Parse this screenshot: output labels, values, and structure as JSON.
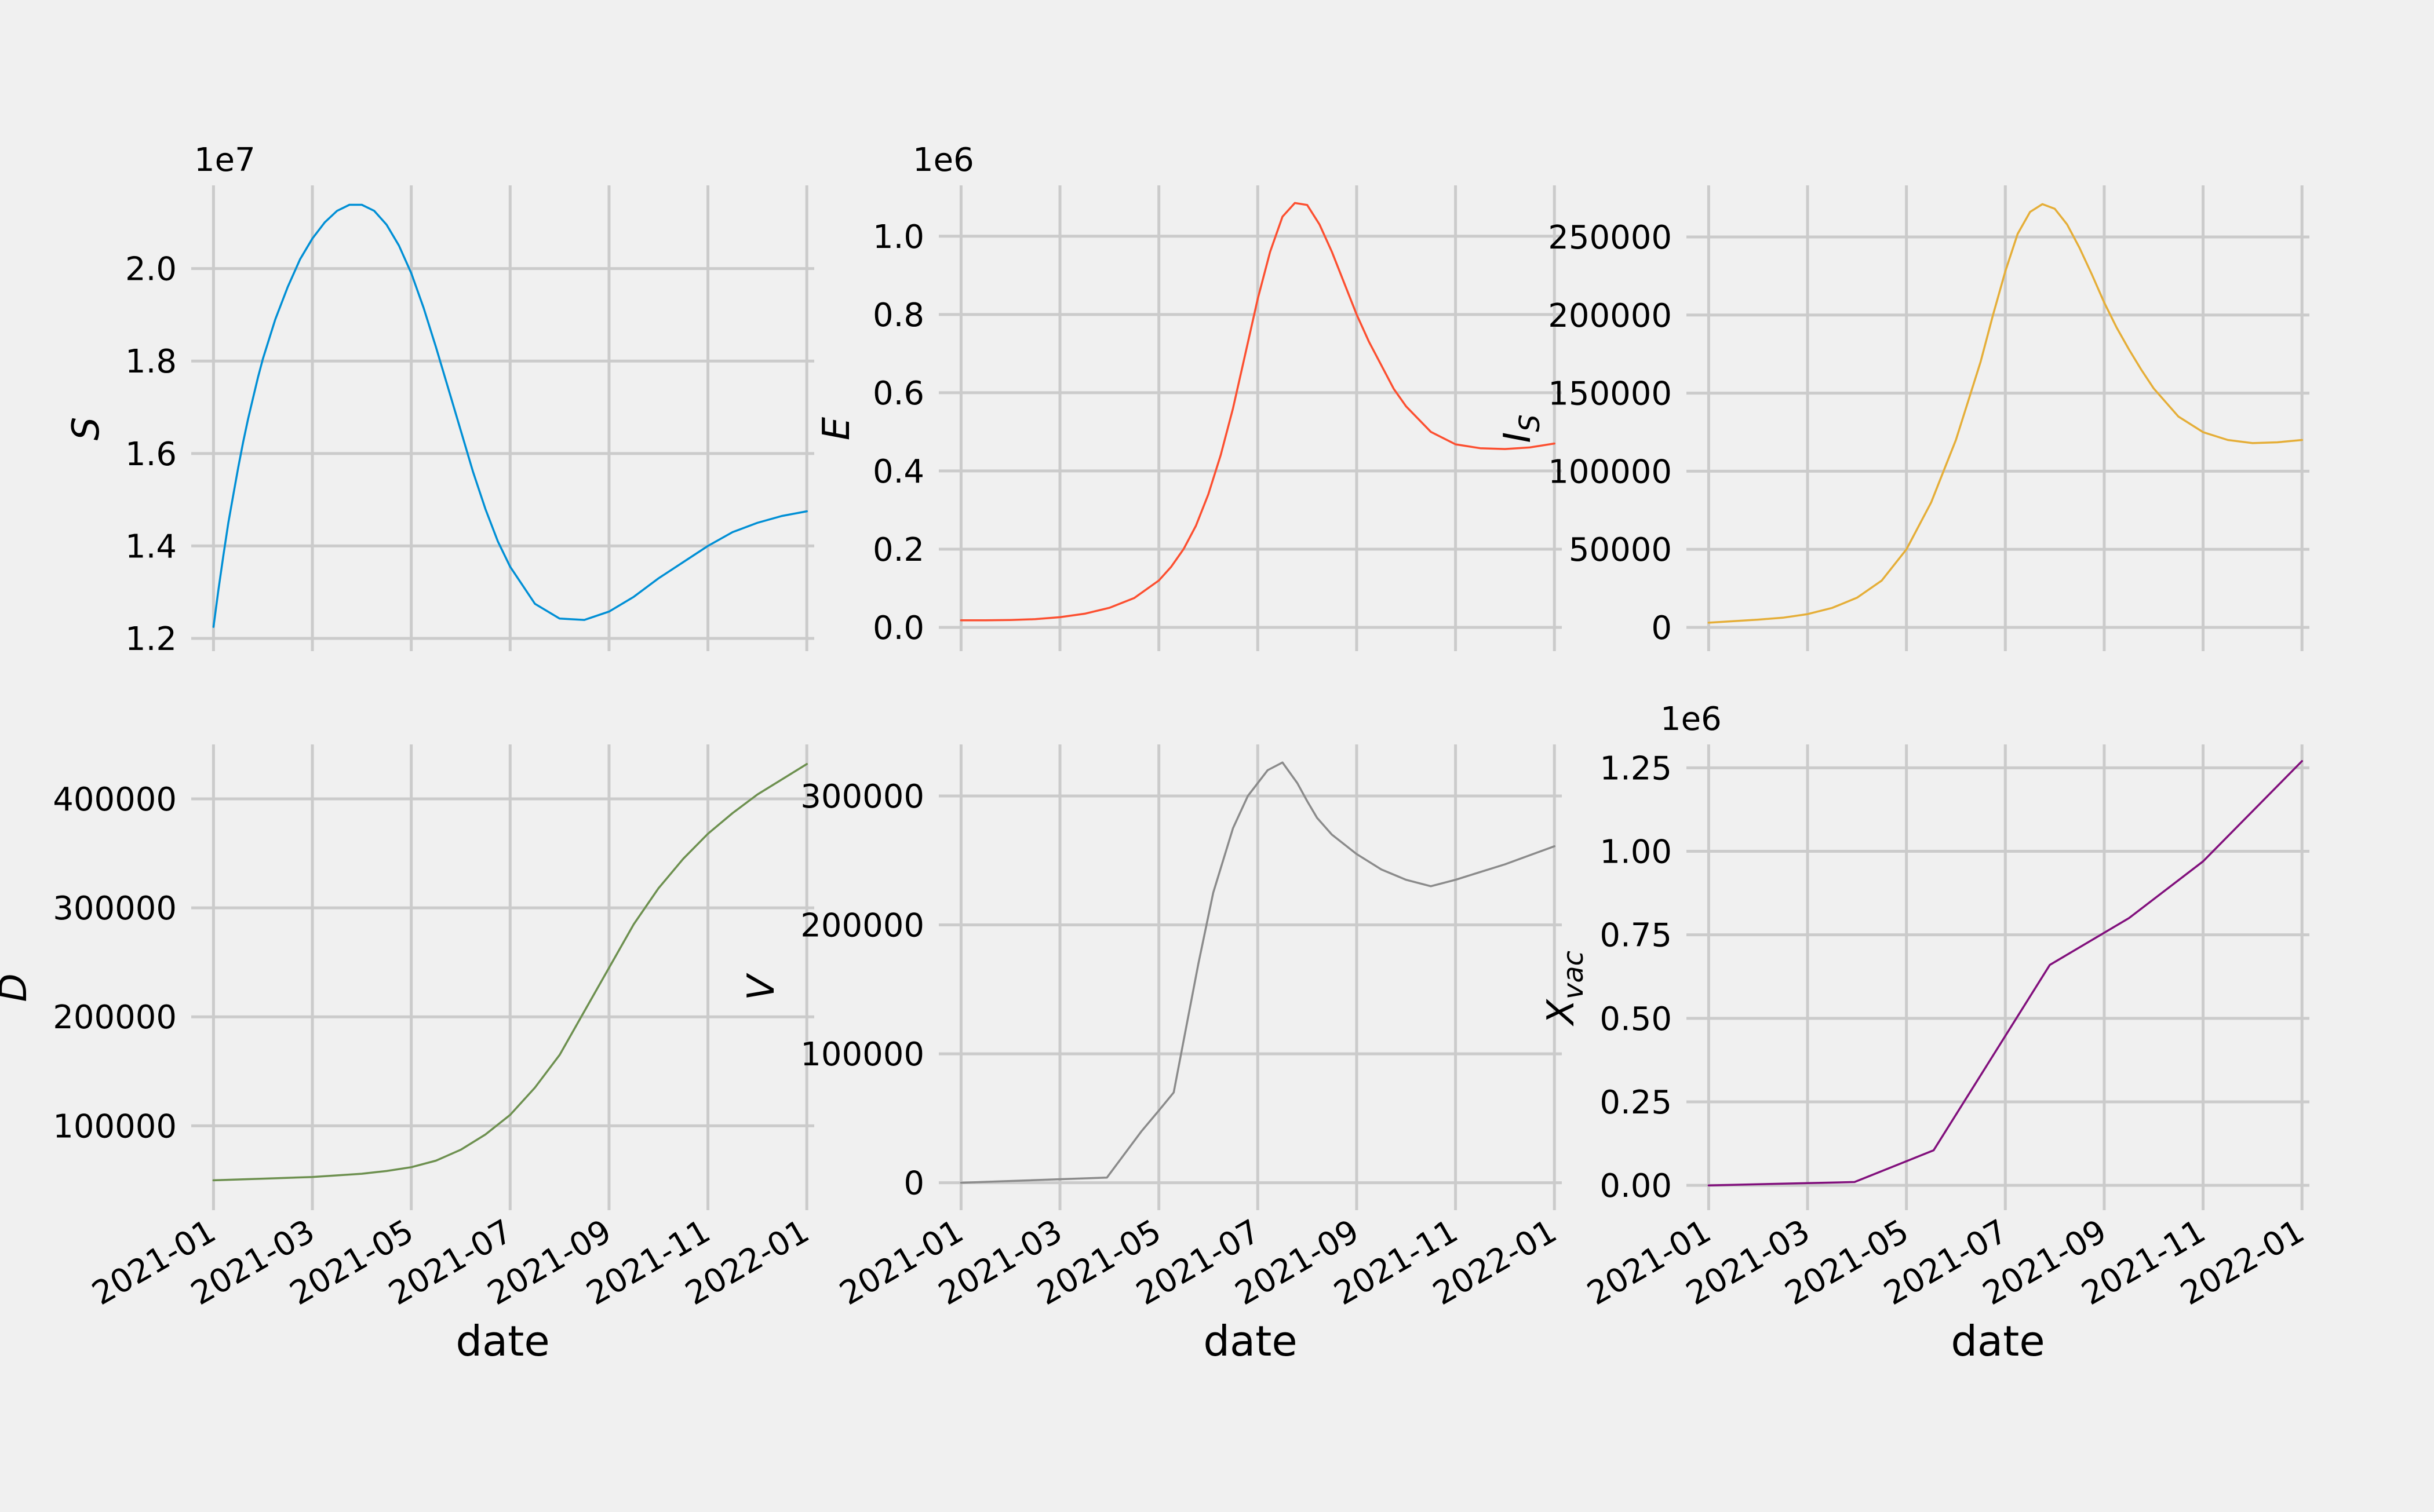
{
  "colors": {
    "background": "#f0f0f0",
    "grid": "#cbcbcb"
  },
  "chart_data": [
    {
      "type": "line",
      "ylabel": "S",
      "xlabel": "",
      "offset_label": "1e7",
      "color": "#008fd5",
      "x_ticks": [
        "2021-01",
        "2021-03",
        "2021-05",
        "2021-07",
        "2021-09",
        "2021-11",
        "2022-01"
      ],
      "y_ticks": [
        1.2,
        1.4,
        1.6,
        1.8,
        2.0
      ],
      "y_tick_labels": [
        "1.2",
        "1.4",
        "1.6",
        "1.8",
        "2.0"
      ],
      "ylim": [
        1.19,
        2.18
      ],
      "x": [
        0,
        0.1,
        0.2,
        0.3,
        0.4,
        0.5,
        0.6,
        0.7,
        0.8,
        0.9,
        1,
        1.25,
        1.5,
        1.75,
        2,
        2.25,
        2.5,
        2.75,
        3,
        3.25,
        3.5,
        3.75,
        4,
        4.25,
        4.5,
        4.75,
        5,
        5.25,
        5.5,
        5.75,
        6,
        6.5,
        7,
        7.5,
        8,
        8.5,
        9,
        9.5,
        10,
        10.5,
        11,
        11.5,
        12
      ],
      "values": [
        1.225,
        1.305,
        1.38,
        1.45,
        1.51,
        1.57,
        1.625,
        1.675,
        1.72,
        1.765,
        1.805,
        1.89,
        1.96,
        2.02,
        2.065,
        2.1,
        2.125,
        2.138,
        2.138,
        2.125,
        2.095,
        2.05,
        1.99,
        1.915,
        1.83,
        1.74,
        1.65,
        1.56,
        1.48,
        1.41,
        1.355,
        1.275,
        1.243,
        1.24,
        1.258,
        1.29,
        1.33,
        1.365,
        1.4,
        1.43,
        1.45,
        1.465,
        1.475
      ]
    },
    {
      "type": "line",
      "ylabel": "E",
      "xlabel": "",
      "offset_label": "1e6",
      "color": "#fc4f30",
      "x_ticks": [
        "2021-01",
        "2021-03",
        "2021-05",
        "2021-07",
        "2021-09",
        "2021-11",
        "2022-01"
      ],
      "y_ticks": [
        0.0,
        0.2,
        0.4,
        0.6,
        0.8,
        1.0
      ],
      "y_tick_labels": [
        "0.0",
        "0.2",
        "0.4",
        "0.6",
        "0.8",
        "1.0"
      ],
      "ylim": [
        -0.04,
        1.13
      ],
      "x": [
        0,
        0.5,
        1,
        1.5,
        2,
        2.5,
        3,
        3.5,
        4,
        4.25,
        4.5,
        4.75,
        5,
        5.25,
        5.5,
        5.75,
        6,
        6.25,
        6.5,
        6.75,
        7,
        7.25,
        7.5,
        7.75,
        8,
        8.25,
        8.5,
        8.75,
        9,
        9.5,
        10,
        10.5,
        11,
        11.5,
        12
      ],
      "values": [
        0.018,
        0.018,
        0.019,
        0.021,
        0.026,
        0.035,
        0.05,
        0.075,
        0.12,
        0.155,
        0.2,
        0.26,
        0.34,
        0.44,
        0.56,
        0.7,
        0.84,
        0.96,
        1.05,
        1.085,
        1.08,
        1.03,
        0.96,
        0.88,
        0.8,
        0.73,
        0.67,
        0.61,
        0.565,
        0.5,
        0.468,
        0.458,
        0.456,
        0.46,
        0.47
      ]
    },
    {
      "type": "line",
      "ylabel": "I_S",
      "xlabel": "",
      "offset_label": "",
      "color": "#e5ae38",
      "x_ticks": [
        "2021-01",
        "2021-03",
        "2021-05",
        "2021-07",
        "2021-09",
        "2021-11",
        "2022-01"
      ],
      "y_ticks": [
        0,
        50000,
        100000,
        150000,
        200000,
        250000
      ],
      "y_tick_labels": [
        "0",
        "50000",
        "100000",
        "150000",
        "200000",
        "250000"
      ],
      "ylim": [
        -10000,
        283000
      ],
      "x": [
        0,
        0.5,
        1,
        1.5,
        2,
        2.5,
        3,
        3.5,
        4,
        4.5,
        5,
        5.25,
        5.5,
        5.75,
        6,
        6.25,
        6.5,
        6.75,
        7,
        7.25,
        7.5,
        7.75,
        8,
        8.25,
        8.5,
        8.75,
        9,
        9.5,
        10,
        10.5,
        11,
        11.5,
        12
      ],
      "values": [
        3000,
        4000,
        5000,
        6200,
        8500,
        12500,
        19000,
        30000,
        50000,
        80000,
        120000,
        145000,
        170000,
        200000,
        228000,
        252000,
        266000,
        271000,
        268000,
        258000,
        243000,
        226000,
        208000,
        192000,
        178000,
        165000,
        153000,
        135000,
        125000,
        120000,
        118000,
        118500,
        120000
      ]
    },
    {
      "type": "line",
      "ylabel": "D",
      "xlabel": "date",
      "offset_label": "",
      "color": "#6d904f",
      "x_ticks": [
        "2021-01",
        "2021-03",
        "2021-05",
        "2021-07",
        "2021-09",
        "2021-11",
        "2022-01"
      ],
      "y_ticks": [
        100000,
        200000,
        300000,
        400000
      ],
      "y_tick_labels": [
        "100000",
        "200000",
        "300000",
        "400000"
      ],
      "ylim": [
        30000,
        450000
      ],
      "x": [
        0,
        1,
        2,
        3,
        3.5,
        4,
        4.5,
        5,
        5.5,
        6,
        6.5,
        7,
        7.5,
        8,
        8.5,
        9,
        9.5,
        10,
        10.5,
        11,
        11.5,
        12
      ],
      "values": [
        50000,
        51500,
        53000,
        56000,
        58500,
        62000,
        68000,
        78000,
        92000,
        110000,
        135000,
        165000,
        205000,
        245000,
        285000,
        318000,
        345000,
        368000,
        387000,
        404000,
        418000,
        432000
      ]
    },
    {
      "type": "line",
      "ylabel": "V",
      "xlabel": "date",
      "offset_label": "",
      "color": "#8b8b8b",
      "x_ticks": [
        "2021-01",
        "2021-03",
        "2021-05",
        "2021-07",
        "2021-09",
        "2021-11",
        "2022-01"
      ],
      "y_ticks": [
        0,
        100000,
        200000,
        300000
      ],
      "y_tick_labels": [
        "0",
        "100000",
        "200000",
        "300000"
      ],
      "ylim": [
        -15000,
        340000
      ],
      "x": [
        0,
        2.95,
        3.3,
        3.65,
        4,
        4.3,
        4.5,
        4.8,
        5.1,
        5.5,
        5.8,
        6.2,
        6.5,
        6.8,
        7,
        7.2,
        7.5,
        8,
        8.5,
        9,
        9.5,
        10,
        10.5,
        11,
        11.5,
        12
      ],
      "values": [
        0,
        4000,
        22000,
        40000,
        56000,
        70000,
        110000,
        170000,
        225000,
        275000,
        300000,
        320000,
        326000,
        310000,
        296000,
        283000,
        270000,
        255000,
        243000,
        235000,
        230000,
        235000,
        241000,
        247000,
        254000,
        261000
      ]
    },
    {
      "type": "line",
      "ylabel": "X_vac",
      "xlabel": "date",
      "offset_label": "1e6",
      "color": "#810f7c",
      "x_ticks": [
        "2021-01",
        "2021-03",
        "2021-05",
        "2021-07",
        "2021-09",
        "2021-11",
        "2022-01"
      ],
      "y_ticks": [
        0.0,
        0.25,
        0.5,
        0.75,
        1.0,
        1.25
      ],
      "y_tick_labels": [
        "0.00",
        "0.25",
        "0.50",
        "0.75",
        "1.00",
        "1.25"
      ],
      "ylim": [
        -0.05,
        1.32
      ],
      "x": [
        0,
        2.95,
        4.55,
        6.9,
        8.5,
        10.0,
        12
      ],
      "values": [
        0.0,
        0.01,
        0.105,
        0.66,
        0.8,
        0.97,
        1.27
      ]
    }
  ]
}
